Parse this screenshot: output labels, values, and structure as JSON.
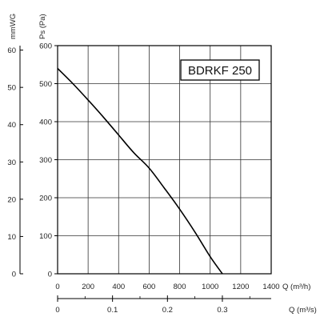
{
  "chart_data": {
    "type": "line",
    "legend_box": {
      "label": "BDRKF 250",
      "placement": "top-right"
    },
    "x_primary": {
      "label": "Q (m³/h)",
      "range": [
        0,
        1400
      ],
      "ticks": [
        0,
        200,
        400,
        600,
        800,
        1000,
        1200,
        1400
      ]
    },
    "x_secondary": {
      "label": "Q (m³/s)",
      "range": [
        0,
        0.3889
      ],
      "ticks": [
        0,
        0.1,
        0.2,
        0.3
      ],
      "tick_labels": [
        "0",
        "0.1",
        "0.2",
        "0.3"
      ]
    },
    "y_primary": {
      "label": "Ps (Pa)",
      "range": [
        0,
        600
      ],
      "ticks": [
        0,
        100,
        200,
        300,
        400,
        500,
        600
      ]
    },
    "y_secondary": {
      "label": "mmWG",
      "range": [
        0,
        61.2
      ],
      "ticks": [
        0,
        10,
        20,
        30,
        40,
        50,
        60
      ]
    },
    "grid": true,
    "series": [
      {
        "color": "#000000",
        "x": [
          0,
          100,
          200,
          300,
          400,
          500,
          600,
          700,
          800,
          900,
          1000,
          1080
        ],
        "y": [
          540,
          500,
          457,
          412,
          365,
          318,
          278,
          225,
          170,
          110,
          45,
          0
        ]
      }
    ]
  }
}
